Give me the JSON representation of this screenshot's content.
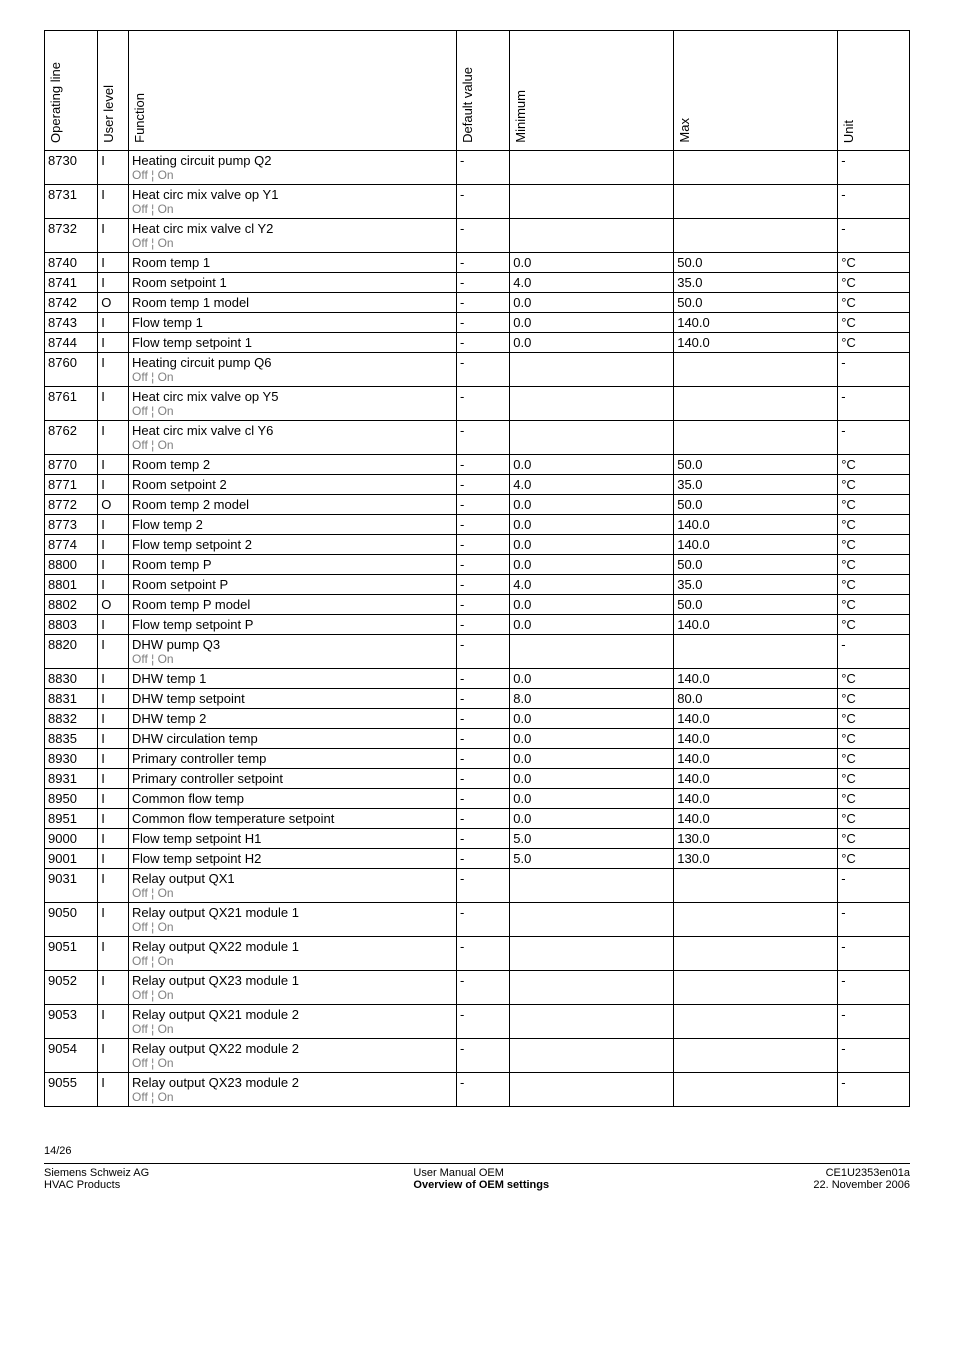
{
  "headers": {
    "op": "Operating line",
    "user": "User level",
    "func": "Function",
    "def": "Default value",
    "min": "Minimum",
    "max": "Max",
    "unit": "Unit"
  },
  "off_on": "Off ¦ On",
  "rows": [
    {
      "op": "8730",
      "user": "I",
      "func": "Heating circuit pump Q2",
      "sub": true,
      "def": "-",
      "min": "",
      "max": "",
      "unit": "-"
    },
    {
      "op": "8731",
      "user": "I",
      "func": "Heat circ mix valve op Y1",
      "sub": true,
      "def": "-",
      "min": "",
      "max": "",
      "unit": "-"
    },
    {
      "op": "8732",
      "user": "I",
      "func": "Heat circ mix valve cl Y2",
      "sub": true,
      "def": "-",
      "min": "",
      "max": "",
      "unit": "-"
    },
    {
      "op": "8740",
      "user": "I",
      "func": "Room temp 1",
      "def": "-",
      "min": "0.0",
      "max": "50.0",
      "unit": "°C"
    },
    {
      "op": "8741",
      "user": "I",
      "func": "Room setpoint 1",
      "def": "-",
      "min": "4.0",
      "max": "35.0",
      "unit": "°C"
    },
    {
      "op": "8742",
      "user": "O",
      "func": "Room temp 1 model",
      "def": "-",
      "min": "0.0",
      "max": "50.0",
      "unit": "°C"
    },
    {
      "op": "8743",
      "user": "I",
      "func": "Flow temp 1",
      "def": "-",
      "min": "0.0",
      "max": "140.0",
      "unit": "°C"
    },
    {
      "op": "8744",
      "user": "I",
      "func": "Flow temp setpoint 1",
      "def": "-",
      "min": "0.0",
      "max": "140.0",
      "unit": "°C"
    },
    {
      "op": "8760",
      "user": "I",
      "func": "Heating circuit pump Q6",
      "sub": true,
      "def": "-",
      "min": "",
      "max": "",
      "unit": "-"
    },
    {
      "op": "8761",
      "user": "I",
      "func": "Heat circ mix valve op Y5",
      "sub": true,
      "def": "-",
      "min": "",
      "max": "",
      "unit": "-"
    },
    {
      "op": "8762",
      "user": "I",
      "func": "Heat circ mix valve cl Y6",
      "sub": true,
      "def": "-",
      "min": "",
      "max": "",
      "unit": "-"
    },
    {
      "op": "8770",
      "user": "I",
      "func": "Room temp 2",
      "def": "-",
      "min": "0.0",
      "max": "50.0",
      "unit": "°C"
    },
    {
      "op": "8771",
      "user": "I",
      "func": "Room setpoint 2",
      "def": "-",
      "min": "4.0",
      "max": "35.0",
      "unit": "°C"
    },
    {
      "op": "8772",
      "user": "O",
      "func": "Room temp 2 model",
      "def": "-",
      "min": "0.0",
      "max": "50.0",
      "unit": "°C"
    },
    {
      "op": "8773",
      "user": "I",
      "func": "Flow temp 2",
      "def": "-",
      "min": "0.0",
      "max": "140.0",
      "unit": "°C"
    },
    {
      "op": "8774",
      "user": "I",
      "func": "Flow temp setpoint 2",
      "def": "-",
      "min": "0.0",
      "max": "140.0",
      "unit": "°C"
    },
    {
      "op": "8800",
      "user": "I",
      "func": "Room temp P",
      "def": "-",
      "min": "0.0",
      "max": "50.0",
      "unit": "°C"
    },
    {
      "op": "8801",
      "user": "I",
      "func": "Room setpoint P",
      "def": "-",
      "min": "4.0",
      "max": "35.0",
      "unit": "°C"
    },
    {
      "op": "8802",
      "user": "O",
      "func": "Room temp P model",
      "def": "-",
      "min": "0.0",
      "max": "50.0",
      "unit": "°C"
    },
    {
      "op": "8803",
      "user": "I",
      "func": "Flow temp setpoint P",
      "def": "-",
      "min": "0.0",
      "max": "140.0",
      "unit": "°C"
    },
    {
      "op": "8820",
      "user": "I",
      "func": "DHW pump Q3",
      "sub": true,
      "def": "-",
      "min": "",
      "max": "",
      "unit": "-"
    },
    {
      "op": "8830",
      "user": "I",
      "func": "DHW temp 1",
      "def": "-",
      "min": "0.0",
      "max": "140.0",
      "unit": "°C"
    },
    {
      "op": "8831",
      "user": "I",
      "func": "DHW temp setpoint",
      "def": "-",
      "min": "8.0",
      "max": "80.0",
      "unit": "°C"
    },
    {
      "op": "8832",
      "user": "I",
      "func": "DHW temp 2",
      "def": "-",
      "min": "0.0",
      "max": "140.0",
      "unit": "°C"
    },
    {
      "op": "8835",
      "user": "I",
      "func": "DHW circulation temp",
      "def": "-",
      "min": "0.0",
      "max": "140.0",
      "unit": "°C"
    },
    {
      "op": "8930",
      "user": "I",
      "func": "Primary controller temp",
      "def": "-",
      "min": "0.0",
      "max": "140.0",
      "unit": "°C"
    },
    {
      "op": "8931",
      "user": "I",
      "func": "Primary controller setpoint",
      "def": "-",
      "min": "0.0",
      "max": "140.0",
      "unit": "°C"
    },
    {
      "op": "8950",
      "user": "I",
      "func": "Common flow temp",
      "def": "-",
      "min": "0.0",
      "max": "140.0",
      "unit": "°C"
    },
    {
      "op": "8951",
      "user": "I",
      "func": "Common flow temperature setpoint",
      "def": "-",
      "min": "0.0",
      "max": "140.0",
      "unit": "°C"
    },
    {
      "op": "9000",
      "user": "I",
      "func": "Flow temp setpoint H1",
      "def": "-",
      "min": "5.0",
      "max": "130.0",
      "unit": "°C"
    },
    {
      "op": "9001",
      "user": "I",
      "func": "Flow temp setpoint H2",
      "def": "-",
      "min": "5.0",
      "max": "130.0",
      "unit": "°C"
    },
    {
      "op": "9031",
      "user": "I",
      "func": "Relay output QX1",
      "sub": true,
      "def": "-",
      "min": "",
      "max": "",
      "unit": "-"
    },
    {
      "op": "9050",
      "user": "I",
      "func": "Relay output QX21 module 1",
      "sub": true,
      "def": "-",
      "min": "",
      "max": "",
      "unit": "-"
    },
    {
      "op": "9051",
      "user": "I",
      "func": "Relay output QX22 module 1",
      "sub": true,
      "def": "-",
      "min": "",
      "max": "",
      "unit": "-"
    },
    {
      "op": "9052",
      "user": "I",
      "func": "Relay output QX23 module 1",
      "sub": true,
      "def": "-",
      "min": "",
      "max": "",
      "unit": "-"
    },
    {
      "op": "9053",
      "user": "I",
      "func": "Relay output QX21 module 2",
      "sub": true,
      "def": "-",
      "min": "",
      "max": "",
      "unit": "-"
    },
    {
      "op": "9054",
      "user": "I",
      "func": "Relay output QX22 module 2",
      "sub": true,
      "def": "-",
      "min": "",
      "max": "",
      "unit": "-"
    },
    {
      "op": "9055",
      "user": "I",
      "func": "Relay output QX23 module 2",
      "sub": true,
      "def": "-",
      "min": "",
      "max": "",
      "unit": "-"
    }
  ],
  "page_number": "14/26",
  "footer": {
    "left1": "Siemens Schweiz AG",
    "left2": "HVAC Products",
    "mid1": "User Manual OEM",
    "mid2": "Overview of OEM settings",
    "right1": "CE1U2353en01a",
    "right2": "22. November 2006"
  }
}
